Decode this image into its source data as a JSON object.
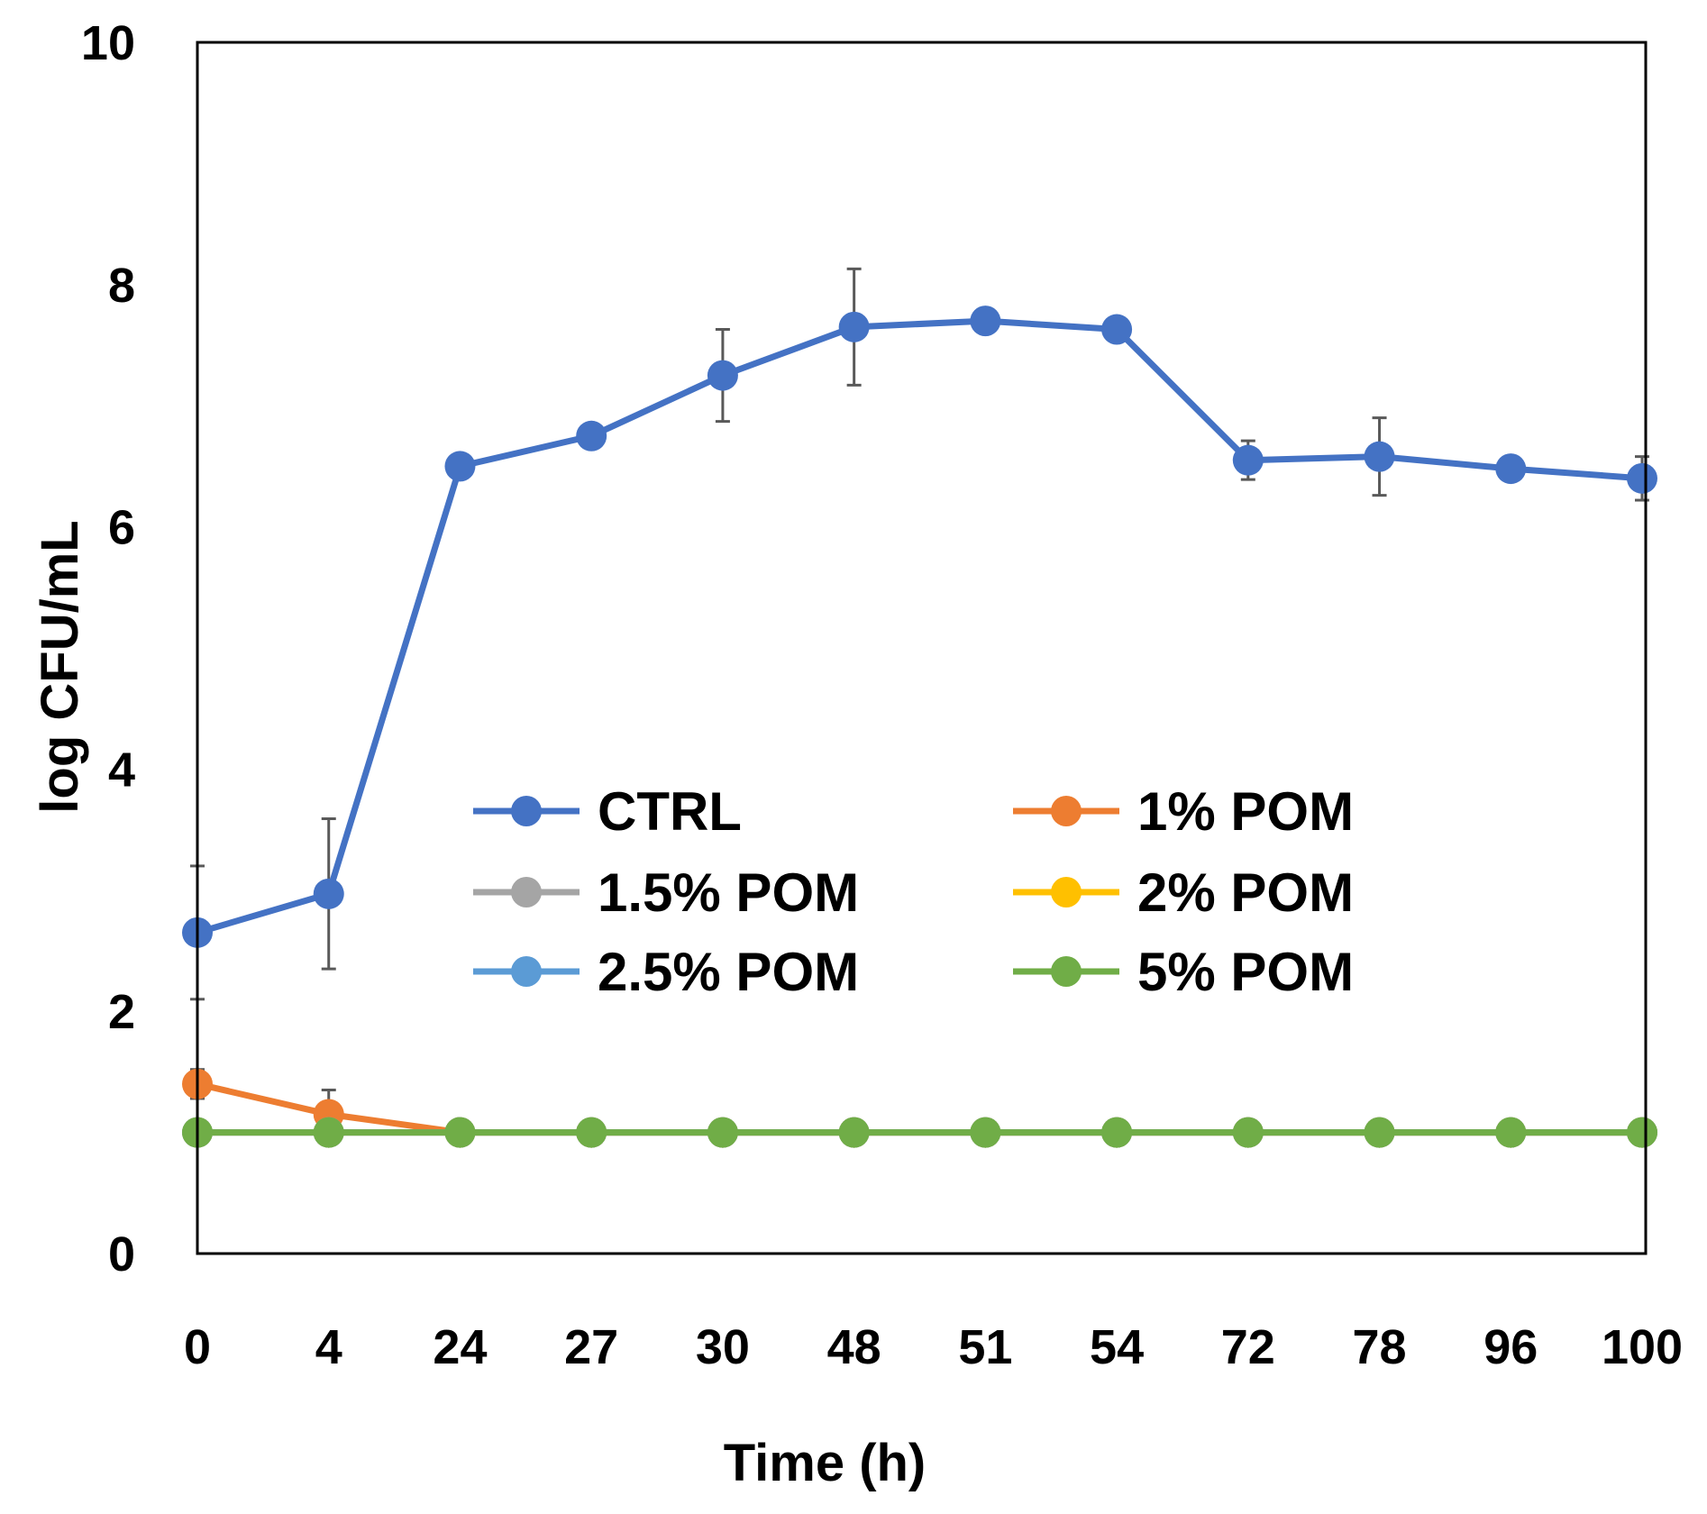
{
  "chart_data": {
    "type": "line",
    "title": "",
    "xlabel": "Time (h)",
    "ylabel": "log CFU/mL",
    "categories": [
      "0",
      "4",
      "24",
      "27",
      "30",
      "48",
      "51",
      "54",
      "72",
      "78",
      "96",
      "100"
    ],
    "ylim": [
      0,
      10
    ],
    "yticks": [
      0,
      2,
      4,
      6,
      8,
      10
    ],
    "ytick_labels": [
      "0",
      "2",
      "4",
      "6",
      "8",
      "10"
    ],
    "grid": false,
    "legend_position": "center",
    "series": [
      {
        "name": "CTRL",
        "color": "#4472C4",
        "values": [
          2.65,
          2.97,
          6.5,
          6.75,
          7.25,
          7.65,
          7.7,
          7.63,
          6.55,
          6.58,
          6.48,
          6.4
        ],
        "errors": [
          0.55,
          0.62,
          0.08,
          0.0,
          0.38,
          0.48,
          0.0,
          0.0,
          0.16,
          0.32,
          0.0,
          0.18
        ]
      },
      {
        "name": "1% POM",
        "color": "#ED7D31",
        "values": [
          1.4,
          1.15,
          1.0,
          1.0,
          1.0,
          1.0,
          1.0,
          1.0,
          1.0,
          1.0,
          1.0,
          1.0
        ],
        "errors": [
          0.12,
          0.2,
          0,
          0,
          0,
          0,
          0,
          0,
          0,
          0,
          0,
          0
        ]
      },
      {
        "name": "1.5% POM",
        "color": "#A5A5A5",
        "values": [
          1.0,
          1.0,
          1.0,
          1.0,
          1.0,
          1.0,
          1.0,
          1.0,
          1.0,
          1.0,
          1.0,
          1.0
        ],
        "errors": [
          0,
          0,
          0,
          0,
          0,
          0,
          0,
          0,
          0,
          0,
          0,
          0
        ]
      },
      {
        "name": "2% POM",
        "color": "#FFC000",
        "values": [
          1.0,
          1.0,
          1.0,
          1.0,
          1.0,
          1.0,
          1.0,
          1.0,
          1.0,
          1.0,
          1.0,
          1.0
        ],
        "errors": [
          0,
          0,
          0,
          0,
          0,
          0,
          0,
          0,
          0,
          0,
          0,
          0
        ]
      },
      {
        "name": "2.5% POM",
        "color": "#5B9BD5",
        "values": [
          1.0,
          1.0,
          1.0,
          1.0,
          1.0,
          1.0,
          1.0,
          1.0,
          1.0,
          1.0,
          1.0,
          1.0
        ],
        "errors": [
          0,
          0,
          0,
          0,
          0,
          0,
          0,
          0,
          0,
          0,
          0,
          0
        ]
      },
      {
        "name": "5% POM",
        "color": "#70AD47",
        "values": [
          1.0,
          1.0,
          1.0,
          1.0,
          1.0,
          1.0,
          1.0,
          1.0,
          1.0,
          1.0,
          1.0,
          1.0
        ],
        "errors": [
          0,
          0,
          0,
          0,
          0,
          0,
          0,
          0,
          0,
          0,
          0,
          0
        ]
      }
    ],
    "error_bar_color": "#595959"
  }
}
